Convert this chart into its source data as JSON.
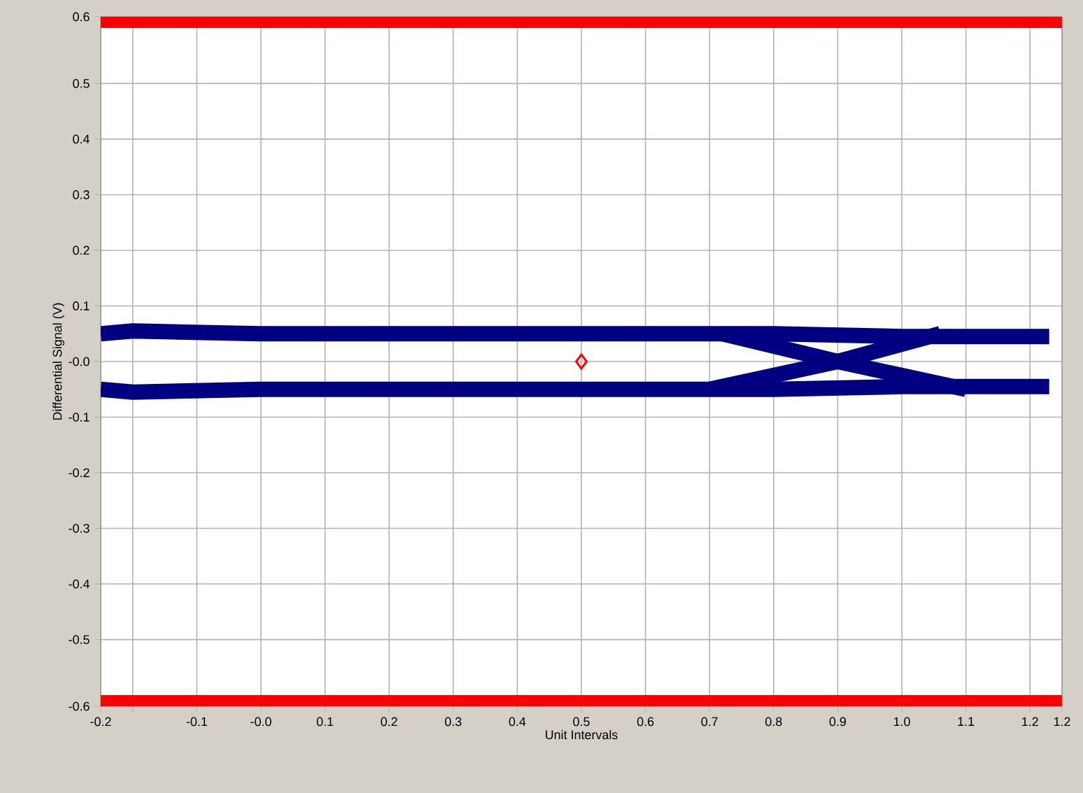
{
  "chart_data": {
    "type": "line",
    "xlabel": "Unit Intervals",
    "ylabel": "Differential Signal  (V)",
    "xlim": [
      -0.25,
      1.25
    ],
    "ylim": [
      -0.62,
      0.62
    ],
    "xticks": [
      {
        "value": -0.25,
        "label": "-0.2"
      },
      {
        "value": -0.2,
        "label": null
      },
      -0.1,
      {
        "value": 0,
        "label": "-0.0"
      },
      0.1,
      0.2,
      0.3,
      0.4,
      0.5,
      0.6,
      0.7,
      0.8,
      0.9,
      {
        "value": 1.0,
        "label": "1.0"
      },
      1.1,
      1.2,
      {
        "value": 1.25,
        "label": "1.2"
      }
    ],
    "yticks": [
      {
        "value": -0.62,
        "label": "-0.6"
      },
      -0.5,
      -0.4,
      -0.3,
      -0.2,
      -0.1,
      {
        "value": 0,
        "label": "-0.0"
      },
      0.1,
      0.2,
      0.3,
      0.4,
      0.5,
      {
        "value": 0.62,
        "label": "0.6"
      }
    ],
    "grid": true,
    "marker": "none",
    "bands": [
      {
        "axis": "y",
        "from": 0.6,
        "to": 0.62,
        "color": "#ff0000"
      },
      {
        "axis": "y",
        "from": -0.62,
        "to": -0.6,
        "color": "#ff0000"
      }
    ],
    "series": [
      {
        "color": "#000080",
        "x": [
          -0.25,
          -0.2,
          0,
          0.2,
          0.4,
          0.6,
          0.8,
          1.0,
          1.2,
          1.23
        ],
        "values": [
          0.05,
          0.055,
          0.05,
          0.05,
          0.05,
          0.05,
          0.05,
          0.045,
          0.045,
          0.045
        ]
      },
      {
        "color": "#000080",
        "x": [
          -0.25,
          -0.2,
          0,
          0.2,
          0.4,
          0.6,
          0.8,
          1.0,
          1.2,
          1.23
        ],
        "values": [
          -0.05,
          -0.055,
          -0.05,
          -0.05,
          -0.05,
          -0.05,
          -0.05,
          -0.045,
          -0.045,
          -0.045
        ]
      },
      {
        "color": "#000080",
        "x": [
          0.72,
          0.9,
          1.1
        ],
        "values": [
          0.05,
          0.0,
          -0.05
        ]
      },
      {
        "color": "#000080",
        "x": [
          0.7,
          0.9,
          1.06
        ],
        "values": [
          -0.05,
          0.0,
          0.05
        ]
      },
      {
        "type": "scatter",
        "marker": "diamond",
        "color": "#ff0000",
        "x": [
          0.5
        ],
        "values": [
          0
        ]
      }
    ]
  }
}
